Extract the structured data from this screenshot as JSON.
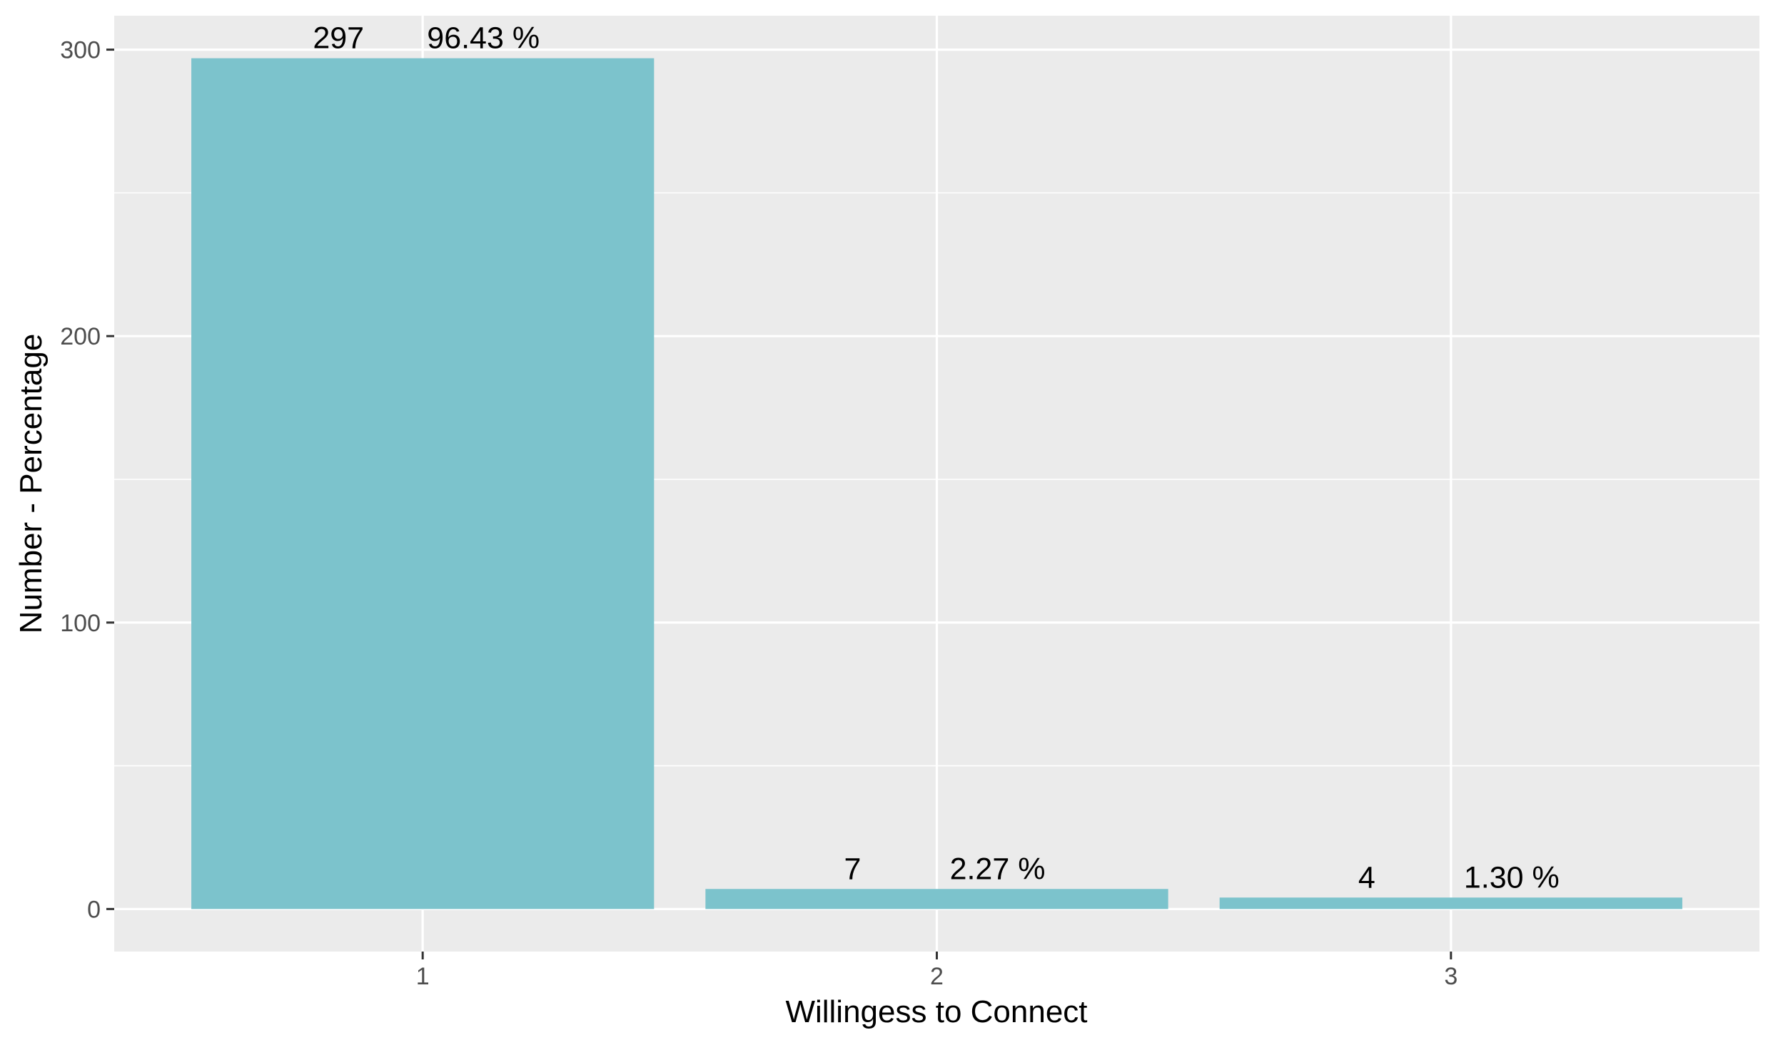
{
  "chart_data": {
    "type": "bar",
    "title": "",
    "xlabel": "Willingess to Connect",
    "ylabel": "Number - Percentage",
    "categories": [
      "1",
      "2",
      "3"
    ],
    "values": [
      297,
      7,
      4
    ],
    "counts": [
      "297",
      "7",
      "4"
    ],
    "percent_labels": [
      "96.43 %",
      "2.27 %",
      "1.30 %"
    ],
    "ylim": [
      -14.85,
      311.85
    ],
    "yticks": [
      0,
      100,
      200,
      300
    ],
    "ytick_labels": [
      "0",
      "100",
      "200",
      "300"
    ],
    "grid": true,
    "legend": "none",
    "colors": {
      "bar": "#7CC3CC",
      "panel": "#EBEBEB",
      "grid": "#FFFFFF"
    }
  }
}
